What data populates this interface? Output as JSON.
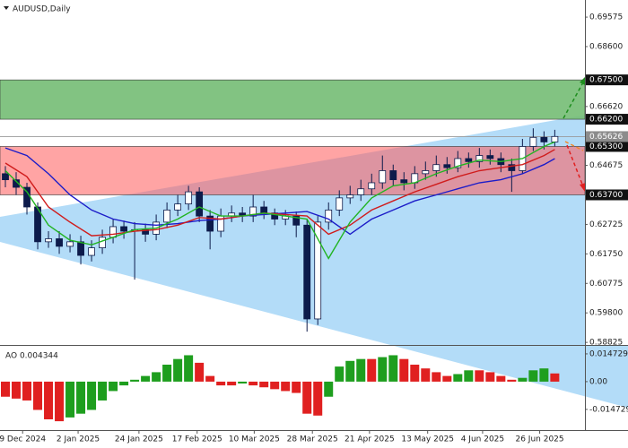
{
  "chart_data": [
    {
      "type": "candlestick",
      "title": "AUDUSD,Daily",
      "color": "#0d1b4b",
      "grid": false,
      "open": [
        0.644,
        0.642,
        0.6395,
        0.633,
        0.6215,
        0.6225,
        0.62,
        0.6215,
        0.617,
        0.6195,
        0.623,
        0.6265,
        0.625,
        0.6255,
        0.624,
        0.628,
        0.632,
        0.634,
        0.638,
        0.63,
        0.625,
        0.63,
        0.631,
        0.63,
        0.633,
        0.631,
        0.629,
        0.63,
        0.627,
        0.596,
        0.628,
        0.632,
        0.636,
        0.637,
        0.639,
        0.641,
        0.645,
        0.642,
        0.641,
        0.644,
        0.645,
        0.647,
        0.646,
        0.649,
        0.648,
        0.65,
        0.649,
        0.647,
        0.645,
        0.653,
        0.656,
        0.6545
      ],
      "high": [
        0.6465,
        0.6445,
        0.641,
        0.6345,
        0.625,
        0.625,
        0.624,
        0.6235,
        0.622,
        0.6255,
        0.629,
        0.6285,
        0.628,
        0.6275,
        0.6305,
        0.6345,
        0.637,
        0.64,
        0.6395,
        0.632,
        0.6325,
        0.6335,
        0.633,
        0.637,
        0.635,
        0.6325,
        0.632,
        0.6315,
        0.629,
        0.63,
        0.6345,
        0.6385,
        0.64,
        0.642,
        0.644,
        0.65,
        0.647,
        0.6445,
        0.6465,
        0.648,
        0.65,
        0.6495,
        0.6515,
        0.651,
        0.6525,
        0.652,
        0.651,
        0.649,
        0.6555,
        0.659,
        0.658,
        0.6585
      ],
      "low": [
        0.6395,
        0.637,
        0.6305,
        0.619,
        0.6195,
        0.6175,
        0.618,
        0.614,
        0.615,
        0.6175,
        0.621,
        0.6225,
        0.609,
        0.6215,
        0.622,
        0.626,
        0.63,
        0.632,
        0.628,
        0.619,
        0.623,
        0.628,
        0.628,
        0.628,
        0.629,
        0.627,
        0.627,
        0.623,
        0.5918,
        0.594,
        0.6255,
        0.63,
        0.634,
        0.635,
        0.637,
        0.639,
        0.64,
        0.6385,
        0.639,
        0.642,
        0.643,
        0.644,
        0.6445,
        0.646,
        0.646,
        0.647,
        0.6445,
        0.638,
        0.644,
        0.6515,
        0.652,
        0.653
      ],
      "close": [
        0.642,
        0.6395,
        0.633,
        0.6215,
        0.6225,
        0.62,
        0.6215,
        0.617,
        0.6195,
        0.623,
        0.6265,
        0.625,
        0.6255,
        0.624,
        0.628,
        0.632,
        0.634,
        0.638,
        0.63,
        0.625,
        0.63,
        0.631,
        0.63,
        0.633,
        0.631,
        0.629,
        0.63,
        0.627,
        0.596,
        0.628,
        0.632,
        0.636,
        0.637,
        0.639,
        0.641,
        0.645,
        0.642,
        0.641,
        0.644,
        0.645,
        0.647,
        0.646,
        0.649,
        0.648,
        0.65,
        0.649,
        0.647,
        0.645,
        0.653,
        0.656,
        0.6545,
        0.6563
      ],
      "series": [
        {
          "color": "#1c1cc8",
          "x": [
            0,
            2,
            4,
            6,
            8,
            10,
            12,
            14,
            16,
            18,
            20,
            22,
            24,
            26,
            28,
            30,
            32,
            34,
            36,
            38,
            40,
            42,
            44,
            46,
            48,
            50,
            51
          ],
          "values": [
            0.6525,
            0.65,
            0.644,
            0.637,
            0.632,
            0.629,
            0.6275,
            0.627,
            0.6275,
            0.6285,
            0.629,
            0.63,
            0.6305,
            0.631,
            0.6315,
            0.629,
            0.624,
            0.629,
            0.632,
            0.635,
            0.637,
            0.639,
            0.641,
            0.642,
            0.644,
            0.647,
            0.649
          ]
        },
        {
          "color": "#d01c1c",
          "x": [
            0,
            2,
            4,
            6,
            8,
            10,
            12,
            14,
            16,
            18,
            20,
            22,
            24,
            26,
            28,
            30,
            32,
            34,
            36,
            38,
            40,
            42,
            44,
            46,
            48,
            50,
            51
          ],
          "values": [
            0.6475,
            0.643,
            0.633,
            0.628,
            0.6235,
            0.624,
            0.625,
            0.6255,
            0.627,
            0.6295,
            0.629,
            0.63,
            0.631,
            0.6305,
            0.63,
            0.624,
            0.627,
            0.632,
            0.635,
            0.638,
            0.6405,
            0.643,
            0.645,
            0.646,
            0.647,
            0.65,
            0.652
          ]
        },
        {
          "color": "#22b422",
          "x": [
            0,
            2,
            4,
            6,
            8,
            10,
            12,
            14,
            16,
            18,
            20,
            22,
            24,
            26,
            28,
            30,
            32,
            34,
            36,
            38,
            40,
            42,
            44,
            46,
            48,
            50,
            51
          ],
          "values": [
            0.645,
            0.638,
            0.627,
            0.622,
            0.6205,
            0.623,
            0.6255,
            0.626,
            0.629,
            0.633,
            0.63,
            0.63,
            0.631,
            0.63,
            0.629,
            0.616,
            0.628,
            0.636,
            0.64,
            0.641,
            0.644,
            0.6465,
            0.6485,
            0.648,
            0.649,
            0.653,
            0.6545
          ]
        }
      ],
      "zones": [
        {
          "from": 0.662,
          "to": 0.675,
          "color": "#74bd74"
        },
        {
          "from": 0.637,
          "to": 0.653,
          "color": "#ff5a5a"
        }
      ],
      "levels": [
        {
          "value": 0.675,
          "label": "0.67500"
        },
        {
          "value": 0.662,
          "label": "0.66200"
        },
        {
          "value": 0.653,
          "label": "0.65300"
        },
        {
          "value": 0.637,
          "label": "0.63700"
        }
      ],
      "last_price": {
        "value": 0.65626,
        "label": "0.65626"
      },
      "xlim": [
        -0.5,
        53.8
      ],
      "xticks": [
        {
          "value": 1.6,
          "label": "9 Dec 2024"
        },
        {
          "value": 6.75,
          "label": "2 Jan 2025"
        },
        {
          "value": 12.4,
          "label": "24 Jan 2025"
        },
        {
          "value": 17.8,
          "label": "17 Feb 2025"
        },
        {
          "value": 23.1,
          "label": "10 Mar 2025"
        },
        {
          "value": 28.5,
          "label": "28 Mar 2025"
        },
        {
          "value": 33.8,
          "label": "21 Apr 2025"
        },
        {
          "value": 39.2,
          "label": "13 May 2025"
        },
        {
          "value": 44.3,
          "label": "4 Jun 2025"
        },
        {
          "value": 49.6,
          "label": "26 Jun 2025"
        }
      ],
      "ylim": [
        0.5874,
        0.7014
      ],
      "yticks": [
        0.69575,
        {
          "value": 0.686,
          "label": "0.68600"
        },
        {
          "value": 0.6662,
          "label": "0.66620"
        },
        0.64675,
        0.62725,
        {
          "value": 0.6175,
          "label": "0.61750"
        },
        0.60775,
        {
          "value": 0.598,
          "label": "0.59800"
        },
        0.58825
      ]
    },
    {
      "type": "bar",
      "title": "AO 0.004344",
      "up_color": "#1e9e1e",
      "down_color": "#e02020",
      "values": [
        -0.008,
        -0.009,
        -0.01,
        -0.015,
        -0.02,
        -0.021,
        -0.019,
        -0.017,
        -0.015,
        -0.01,
        -0.005,
        -0.002,
        0.001,
        0.003,
        0.005,
        0.009,
        0.012,
        0.014,
        0.01,
        0.003,
        -0.002,
        -0.002,
        -0.001,
        -0.002,
        -0.003,
        -0.004,
        -0.005,
        -0.006,
        -0.017,
        -0.018,
        -0.008,
        0.008,
        0.011,
        0.012,
        0.012,
        0.013,
        0.014,
        0.012,
        0.009,
        0.007,
        0.005,
        0.003,
        0.004,
        0.006,
        0.006,
        0.005,
        0.003,
        0.001,
        0.002,
        0.006,
        0.007,
        0.004344
      ],
      "ylim": [
        -0.0257,
        0.0185
      ],
      "yticks": [
        0.014729,
        {
          "value": 0,
          "label": "0.00"
        },
        -0.014729
      ]
    }
  ]
}
